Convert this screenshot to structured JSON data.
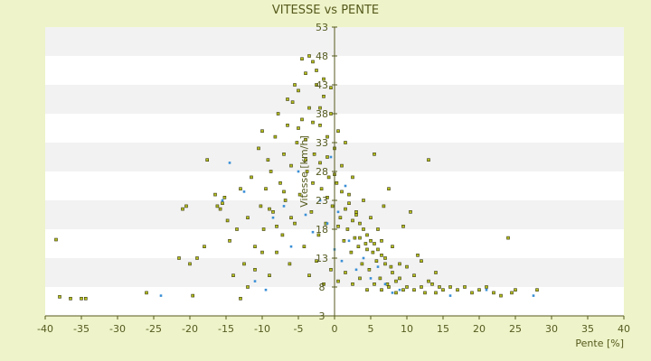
{
  "chart_data": {
    "type": "scatter",
    "title": "VITESSE vs PENTE",
    "xlabel": "Pente [%]",
    "ylabel": "Vitesse [km/h]",
    "xlim": [
      -40,
      40
    ],
    "ylim": [
      3,
      53
    ],
    "x_ticks": [
      -40,
      -35,
      -30,
      -25,
      -20,
      -15,
      -10,
      -5,
      0,
      5,
      10,
      15,
      20,
      25,
      30,
      35,
      40
    ],
    "y_ticks": [
      3,
      8,
      13,
      18,
      23,
      28,
      33,
      38,
      43,
      48,
      53
    ],
    "grid": "horizontal-bands",
    "colors": {
      "background": "#eef3c9",
      "band_light": "#ffffff",
      "band_dark": "#f2f2f2",
      "series_main": "#b5bf1c",
      "series_main_edge": "#3a3a10",
      "series_secondary": "#3a8fd6",
      "axis": "#55591c"
    },
    "series": [
      {
        "color_key": "series_main",
        "points": [
          [
            -38.5,
            16.2
          ],
          [
            -38,
            6.3
          ],
          [
            -36.5,
            6.0
          ],
          [
            -35,
            6.0
          ],
          [
            -34.4,
            6.0
          ],
          [
            -26,
            7.0
          ],
          [
            -21.5,
            13.0
          ],
          [
            -21,
            21.5
          ],
          [
            -20.5,
            22.0
          ],
          [
            -20,
            12.0
          ],
          [
            -19.6,
            6.5
          ],
          [
            -19,
            13.0
          ],
          [
            -18,
            15.0
          ],
          [
            -17.6,
            30.0
          ],
          [
            -16.5,
            24.0
          ],
          [
            -16.2,
            22.0
          ],
          [
            -15.8,
            21.5
          ],
          [
            -15.5,
            22.5
          ],
          [
            -15.2,
            23.5
          ],
          [
            -14.8,
            19.5
          ],
          [
            -14.5,
            16.0
          ],
          [
            -14.0,
            10.0
          ],
          [
            -13.5,
            18.0
          ],
          [
            -13.0,
            25.0
          ],
          [
            -12.5,
            12.0
          ],
          [
            -12.0,
            20.0
          ],
          [
            -11.5,
            27.0
          ],
          [
            -11.0,
            15.0
          ],
          [
            -10.5,
            32.0
          ],
          [
            -10.2,
            22.0
          ],
          [
            -10.0,
            35.0
          ],
          [
            -9.8,
            18.0
          ],
          [
            -9.5,
            25.0
          ],
          [
            -9.2,
            30.0
          ],
          [
            -9.0,
            10.0
          ],
          [
            -8.8,
            28.0
          ],
          [
            -8.5,
            21.0
          ],
          [
            -8.2,
            34.0
          ],
          [
            -8.0,
            14.0
          ],
          [
            -7.8,
            38.0
          ],
          [
            -7.5,
            26.0
          ],
          [
            -7.2,
            17.0
          ],
          [
            -7.0,
            31.0
          ],
          [
            -6.8,
            23.0
          ],
          [
            -6.5,
            36.0
          ],
          [
            -6.2,
            12.0
          ],
          [
            -6.0,
            29.0
          ],
          [
            -5.8,
            40.0
          ],
          [
            -5.5,
            19.0
          ],
          [
            -5.2,
            33.0
          ],
          [
            -5.0,
            42.0
          ],
          [
            -4.8,
            24.0
          ],
          [
            -4.5,
            37.0
          ],
          [
            -4.2,
            15.0
          ],
          [
            -4.0,
            45.0
          ],
          [
            -3.8,
            28.0
          ],
          [
            -3.5,
            39.0
          ],
          [
            -3.2,
            21.0
          ],
          [
            -3.0,
            47.0
          ],
          [
            -2.8,
            31.0
          ],
          [
            -2.5,
            43.0
          ],
          [
            -2.2,
            17.0
          ],
          [
            -2.0,
            36.0
          ],
          [
            -1.8,
            25.0
          ],
          [
            -1.5,
            41.0
          ],
          [
            -1.2,
            19.0
          ],
          [
            -1.0,
            34.0
          ],
          [
            -0.8,
            27.0
          ],
          [
            -0.5,
            38.0
          ],
          [
            -0.3,
            22.0
          ],
          [
            0.0,
            32.0
          ],
          [
            0.3,
            26.0
          ],
          [
            0.5,
            35.0
          ],
          [
            0.8,
            20.0
          ],
          [
            1.0,
            29.0
          ],
          [
            1.3,
            16.0
          ],
          [
            1.5,
            33.0
          ],
          [
            1.8,
            18.0
          ],
          [
            2.0,
            24.0
          ],
          [
            2.3,
            14.0
          ],
          [
            2.5,
            27.0
          ],
          [
            2.8,
            16.5
          ],
          [
            3.0,
            21.0
          ],
          [
            3.3,
            15.0
          ],
          [
            3.5,
            19.0
          ],
          [
            3.8,
            12.0
          ],
          [
            4.0,
            23.0
          ],
          [
            4.3,
            15.5
          ],
          [
            4.5,
            17.0
          ],
          [
            4.8,
            11.0
          ],
          [
            5.0,
            20.0
          ],
          [
            5.3,
            14.0
          ],
          [
            5.5,
            31.0
          ],
          [
            5.8,
            12.5
          ],
          [
            6.0,
            18.0
          ],
          [
            6.3,
            9.5
          ],
          [
            6.5,
            16.0
          ],
          [
            6.8,
            22.0
          ],
          [
            7.0,
            13.0
          ],
          [
            7.3,
            8.5
          ],
          [
            7.5,
            25.0
          ],
          [
            7.8,
            11.5
          ],
          [
            8.0,
            15.0
          ],
          [
            8.5,
            9.0
          ],
          [
            9.0,
            12.0
          ],
          [
            9.5,
            18.5
          ],
          [
            10.0,
            8.0
          ],
          [
            10.5,
            21.0
          ],
          [
            11.0,
            7.5
          ],
          [
            11.5,
            13.5
          ],
          [
            12.0,
            8.0
          ],
          [
            12.5,
            7.0
          ],
          [
            13.0,
            30.0
          ],
          [
            13.5,
            8.5
          ],
          [
            14.0,
            7.0
          ],
          [
            14.5,
            8.0
          ],
          [
            15.0,
            7.5
          ],
          [
            16.0,
            8.0
          ],
          [
            17.0,
            7.5
          ],
          [
            18.0,
            8.0
          ],
          [
            19.0,
            7.0
          ],
          [
            20.0,
            7.5
          ],
          [
            21.0,
            8.0
          ],
          [
            22.0,
            7.0
          ],
          [
            23.0,
            6.5
          ],
          [
            24.0,
            16.5
          ],
          [
            24.5,
            7.0
          ],
          [
            25.0,
            7.5
          ],
          [
            28.0,
            7.5
          ],
          [
            -5.0,
            35.5
          ],
          [
            -4.0,
            30.0
          ],
          [
            -3.0,
            26.0
          ],
          [
            -2.0,
            29.5
          ],
          [
            -1.0,
            23.5
          ],
          [
            0.5,
            18.5
          ],
          [
            1.5,
            21.5
          ],
          [
            2.5,
            19.5
          ],
          [
            3.5,
            16.5
          ],
          [
            4.5,
            14.5
          ],
          [
            5.5,
            15.5
          ],
          [
            6.5,
            13.5
          ],
          [
            -6.0,
            20.0
          ],
          [
            -7.0,
            24.5
          ],
          [
            -8.0,
            18.5
          ],
          [
            -9.0,
            21.5
          ],
          [
            -10.0,
            14.0
          ],
          [
            -11.0,
            11.0
          ],
          [
            -12.0,
            8.0
          ],
          [
            -13.0,
            6.0
          ],
          [
            -3.5,
            10.0
          ],
          [
            -2.5,
            12.5
          ],
          [
            -1.5,
            8.5
          ],
          [
            -0.5,
            11.0
          ],
          [
            0.5,
            9.0
          ],
          [
            1.5,
            10.5
          ],
          [
            2.5,
            8.5
          ],
          [
            3.5,
            9.5
          ],
          [
            4.5,
            7.5
          ],
          [
            5.5,
            8.5
          ],
          [
            6.5,
            7.5
          ],
          [
            7.5,
            8.0
          ],
          [
            8.5,
            7.0
          ],
          [
            9.5,
            7.5
          ],
          [
            -4.5,
            47.5
          ],
          [
            -3.5,
            48.0
          ],
          [
            -2.5,
            45.5
          ],
          [
            -1.5,
            44.0
          ],
          [
            -0.5,
            42.5
          ],
          [
            -5.5,
            43.0
          ],
          [
            -6.5,
            40.5
          ],
          [
            -4.0,
            33.5
          ],
          [
            -3.0,
            36.5
          ],
          [
            -2.0,
            39.0
          ],
          [
            -1.0,
            30.5
          ],
          [
            0.0,
            27.5
          ],
          [
            1.0,
            24.5
          ],
          [
            2.0,
            22.5
          ],
          [
            3.0,
            20.5
          ],
          [
            4.0,
            18.0
          ],
          [
            5.0,
            16.0
          ],
          [
            6.0,
            14.5
          ],
          [
            7.0,
            12.0
          ],
          [
            8.0,
            10.5
          ],
          [
            9.0,
            9.5
          ],
          [
            10.0,
            11.5
          ],
          [
            11.0,
            10.0
          ],
          [
            12.0,
            12.5
          ],
          [
            13.0,
            9.0
          ],
          [
            14.0,
            10.5
          ]
        ]
      },
      {
        "color_key": "series_secondary",
        "points": [
          [
            -24,
            6.5
          ],
          [
            -14.5,
            29.5
          ],
          [
            -12.5,
            24.5
          ],
          [
            -11.0,
            9.0
          ],
          [
            -9.5,
            7.5
          ],
          [
            -8.5,
            20.0
          ],
          [
            -7.0,
            22.0
          ],
          [
            -6.0,
            15.0
          ],
          [
            -5.0,
            28.0
          ],
          [
            -4.0,
            20.5
          ],
          [
            -3.0,
            17.5
          ],
          [
            -2.0,
            23.0
          ],
          [
            -1.0,
            19.0
          ],
          [
            0.0,
            14.5
          ],
          [
            0.5,
            21.0
          ],
          [
            1.0,
            12.5
          ],
          [
            2.0,
            16.0
          ],
          [
            3.0,
            11.0
          ],
          [
            4.0,
            13.0
          ],
          [
            5.0,
            9.5
          ],
          [
            6.0,
            11.5
          ],
          [
            7.0,
            8.5
          ],
          [
            8.0,
            7.0
          ],
          [
            9.0,
            7.5
          ],
          [
            16.0,
            6.5
          ],
          [
            21.0,
            7.5
          ],
          [
            27.5,
            6.5
          ],
          [
            -0.5,
            30.5
          ],
          [
            1.5,
            25.5
          ],
          [
            -15.5,
            23.0
          ]
        ]
      }
    ]
  }
}
